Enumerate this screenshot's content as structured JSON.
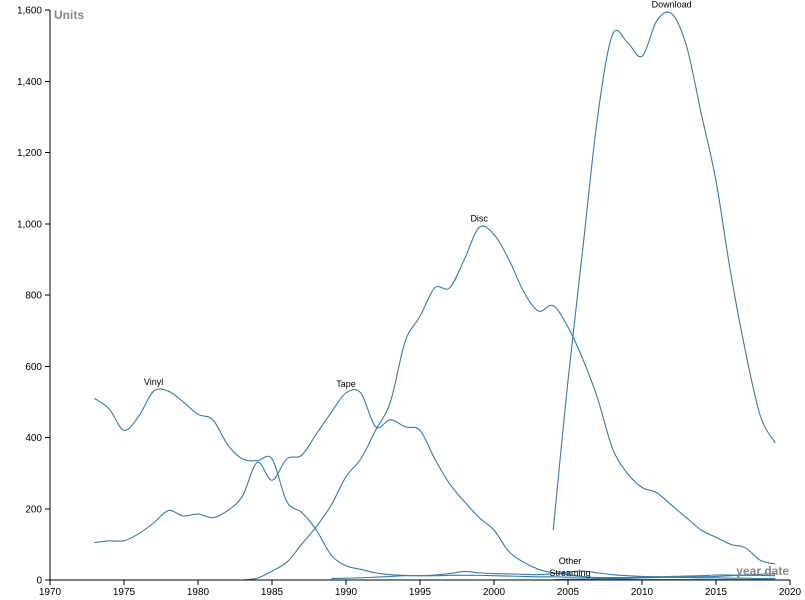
{
  "chart_data": {
    "type": "line",
    "title": "",
    "xlabel": "year date",
    "ylabel": "Units",
    "xlim": [
      1970,
      2020
    ],
    "ylim": [
      0,
      1600
    ],
    "x_ticks": [
      1970,
      1975,
      1980,
      1985,
      1990,
      1995,
      2000,
      2005,
      2010,
      2015,
      2020
    ],
    "y_ticks": [
      0,
      200,
      400,
      600,
      800,
      1000,
      1200,
      1400,
      1600
    ],
    "y_tick_labels": [
      "0",
      "200",
      "400",
      "600",
      "800",
      "1,000",
      "1,200",
      "1,400",
      "1,600"
    ],
    "grid": false,
    "legend": "none",
    "line_color": "#2f7db6",
    "series": [
      {
        "name": "Vinyl",
        "label_year": 1977,
        "points": [
          [
            1973,
            510
          ],
          [
            1974,
            480
          ],
          [
            1975,
            420
          ],
          [
            1976,
            460
          ],
          [
            1977,
            530
          ],
          [
            1978,
            530
          ],
          [
            1979,
            500
          ],
          [
            1980,
            465
          ],
          [
            1981,
            450
          ],
          [
            1982,
            380
          ],
          [
            1983,
            340
          ],
          [
            1984,
            335
          ],
          [
            1985,
            340
          ],
          [
            1986,
            220
          ],
          [
            1987,
            190
          ],
          [
            1988,
            140
          ],
          [
            1989,
            70
          ],
          [
            1990,
            40
          ],
          [
            1991,
            30
          ],
          [
            1992,
            20
          ],
          [
            1993,
            15
          ],
          [
            1994,
            13
          ],
          [
            1995,
            12
          ],
          [
            1996,
            12
          ],
          [
            1997,
            13
          ],
          [
            1998,
            13
          ],
          [
            1999,
            13
          ],
          [
            2000,
            12
          ],
          [
            2001,
            11
          ],
          [
            2002,
            10
          ],
          [
            2003,
            9
          ],
          [
            2004,
            9
          ],
          [
            2005,
            8
          ],
          [
            2006,
            8
          ],
          [
            2007,
            7
          ],
          [
            2008,
            7
          ],
          [
            2009,
            7
          ],
          [
            2010,
            8
          ],
          [
            2011,
            9
          ],
          [
            2012,
            10
          ],
          [
            2013,
            11
          ],
          [
            2014,
            12
          ],
          [
            2015,
            14
          ],
          [
            2016,
            14
          ],
          [
            2017,
            13
          ],
          [
            2018,
            13
          ],
          [
            2019,
            12
          ]
        ]
      },
      {
        "name": "Tape",
        "label_year": 1990,
        "points": [
          [
            1973,
            105
          ],
          [
            1974,
            110
          ],
          [
            1975,
            110
          ],
          [
            1976,
            130
          ],
          [
            1977,
            160
          ],
          [
            1978,
            195
          ],
          [
            1979,
            180
          ],
          [
            1980,
            185
          ],
          [
            1981,
            175
          ],
          [
            1982,
            195
          ],
          [
            1983,
            235
          ],
          [
            1984,
            330
          ],
          [
            1985,
            280
          ],
          [
            1986,
            340
          ],
          [
            1987,
            350
          ],
          [
            1988,
            410
          ],
          [
            1989,
            470
          ],
          [
            1990,
            525
          ],
          [
            1991,
            525
          ],
          [
            1992,
            430
          ],
          [
            1993,
            450
          ],
          [
            1994,
            430
          ],
          [
            1995,
            420
          ],
          [
            1996,
            340
          ],
          [
            1997,
            270
          ],
          [
            1998,
            220
          ],
          [
            1999,
            175
          ],
          [
            2000,
            140
          ],
          [
            2001,
            80
          ],
          [
            2002,
            50
          ],
          [
            2003,
            30
          ],
          [
            2004,
            20
          ],
          [
            2005,
            15
          ],
          [
            2006,
            10
          ],
          [
            2007,
            5
          ],
          [
            2008,
            3
          ],
          [
            2009,
            2
          ],
          [
            2010,
            1
          ],
          [
            2011,
            1
          ],
          [
            2012,
            1
          ],
          [
            2013,
            1
          ],
          [
            2014,
            1
          ],
          [
            2015,
            1
          ],
          [
            2016,
            1
          ],
          [
            2017,
            1
          ],
          [
            2018,
            1
          ],
          [
            2019,
            1
          ]
        ]
      },
      {
        "name": "Disc",
        "label_year": 1999,
        "points": [
          [
            1983,
            0
          ],
          [
            1984,
            5
          ],
          [
            1985,
            25
          ],
          [
            1986,
            50
          ],
          [
            1987,
            100
          ],
          [
            1988,
            150
          ],
          [
            1989,
            210
          ],
          [
            1990,
            290
          ],
          [
            1991,
            340
          ],
          [
            1992,
            420
          ],
          [
            1993,
            500
          ],
          [
            1994,
            670
          ],
          [
            1995,
            740
          ],
          [
            1996,
            820
          ],
          [
            1997,
            820
          ],
          [
            1998,
            900
          ],
          [
            1999,
            990
          ],
          [
            2000,
            970
          ],
          [
            2001,
            900
          ],
          [
            2002,
            810
          ],
          [
            2003,
            755
          ],
          [
            2004,
            770
          ],
          [
            2005,
            710
          ],
          [
            2006,
            620
          ],
          [
            2007,
            510
          ],
          [
            2008,
            370
          ],
          [
            2009,
            300
          ],
          [
            2010,
            260
          ],
          [
            2011,
            245
          ],
          [
            2012,
            210
          ],
          [
            2013,
            175
          ],
          [
            2014,
            140
          ],
          [
            2015,
            120
          ],
          [
            2016,
            100
          ],
          [
            2017,
            90
          ],
          [
            2018,
            55
          ],
          [
            2019,
            45
          ]
        ]
      },
      {
        "name": "Download",
        "label_year": 2012,
        "points": [
          [
            2004,
            140
          ],
          [
            2005,
            560
          ],
          [
            2006,
            930
          ],
          [
            2007,
            1300
          ],
          [
            2008,
            1530
          ],
          [
            2009,
            1510
          ],
          [
            2010,
            1470
          ],
          [
            2011,
            1570
          ],
          [
            2012,
            1590
          ],
          [
            2013,
            1500
          ],
          [
            2014,
            1310
          ],
          [
            2015,
            1120
          ],
          [
            2016,
            860
          ],
          [
            2017,
            640
          ],
          [
            2018,
            460
          ],
          [
            2019,
            385
          ]
        ]
      },
      {
        "name": "Other",
        "label_year": 2005,
        "points": [
          [
            1989,
            4
          ],
          [
            1990,
            5
          ],
          [
            1991,
            6
          ],
          [
            1992,
            8
          ],
          [
            1993,
            10
          ],
          [
            1994,
            12
          ],
          [
            1995,
            12
          ],
          [
            1996,
            14
          ],
          [
            1997,
            18
          ],
          [
            1998,
            24
          ],
          [
            1999,
            20
          ],
          [
            2000,
            18
          ],
          [
            2001,
            17
          ],
          [
            2002,
            16
          ],
          [
            2003,
            15
          ],
          [
            2004,
            18
          ],
          [
            2005,
            22
          ],
          [
            2006,
            25
          ],
          [
            2007,
            20
          ],
          [
            2008,
            15
          ],
          [
            2009,
            12
          ],
          [
            2010,
            10
          ],
          [
            2011,
            9
          ],
          [
            2012,
            8
          ],
          [
            2013,
            7
          ],
          [
            2014,
            6
          ],
          [
            2015,
            6
          ],
          [
            2016,
            5
          ],
          [
            2017,
            5
          ],
          [
            2018,
            4
          ],
          [
            2019,
            4
          ]
        ]
      },
      {
        "name": "Streaming",
        "label_year": 2005,
        "points": [
          [
            2004,
            1
          ],
          [
            2005,
            2
          ],
          [
            2006,
            3
          ],
          [
            2007,
            3
          ],
          [
            2008,
            4
          ],
          [
            2009,
            5
          ],
          [
            2010,
            6
          ],
          [
            2011,
            7
          ],
          [
            2012,
            8
          ],
          [
            2013,
            8
          ],
          [
            2014,
            9
          ],
          [
            2015,
            10
          ],
          [
            2016,
            12
          ],
          [
            2017,
            14
          ],
          [
            2018,
            16
          ],
          [
            2019,
            18
          ]
        ]
      }
    ]
  }
}
